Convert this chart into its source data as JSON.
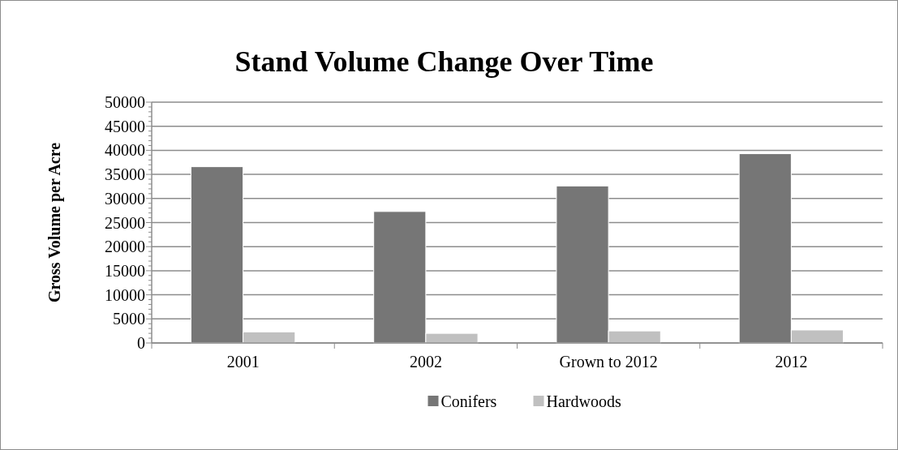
{
  "chart_data": {
    "type": "bar",
    "title": "Stand Volume Change Over Time",
    "ylabel": "Gross Volume per Acre",
    "categories": [
      "2001",
      "2002",
      "Grown to 2012",
      "2012"
    ],
    "series": [
      {
        "name": "Conifers",
        "color": "#767676",
        "values": [
          36600,
          27300,
          32600,
          39300
        ]
      },
      {
        "name": "Hardwoods",
        "color": "#c0c0c0",
        "values": [
          2300,
          2000,
          2500,
          2700
        ]
      }
    ],
    "ylim": [
      0,
      50000
    ],
    "yticks": [
      0,
      5000,
      10000,
      15000,
      20000,
      25000,
      30000,
      35000,
      40000,
      45000,
      50000
    ],
    "grid": "y",
    "legend": "bottom"
  }
}
